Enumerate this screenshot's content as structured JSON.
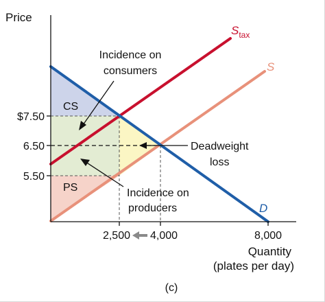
{
  "panel_label": "(c)",
  "axes": {
    "y_title": "Price",
    "x_title_line1": "Quantity",
    "x_title_line2": "(plates per day)"
  },
  "price_ticks": [
    "$7.50",
    "6.50",
    "5.50"
  ],
  "quantity_ticks": [
    "2,500",
    "4,000",
    "8,000"
  ],
  "curves": {
    "stax_main": "S",
    "stax_sub": "tax",
    "supply": "S",
    "demand": "D"
  },
  "regions": {
    "cs": "CS",
    "ps": "PS"
  },
  "annotations": {
    "consumers_line1": "Incidence on",
    "consumers_line2": "consumers",
    "producers_line1": "Incidence on",
    "producers_line2": "producers",
    "dwl_line1": "Deadweight",
    "dwl_line2": "loss"
  },
  "colors": {
    "demand": "#1f5ea8",
    "supply": "#e8917a",
    "supply_tax": "#c8102e",
    "cs_fill": "#cdd4ea",
    "ps_fill": "#f6d3c9",
    "incidence_fill": "#e3ecd3",
    "deadweight_fill": "#fbf6c4",
    "arrow_gray": "#8a8a8a"
  }
}
